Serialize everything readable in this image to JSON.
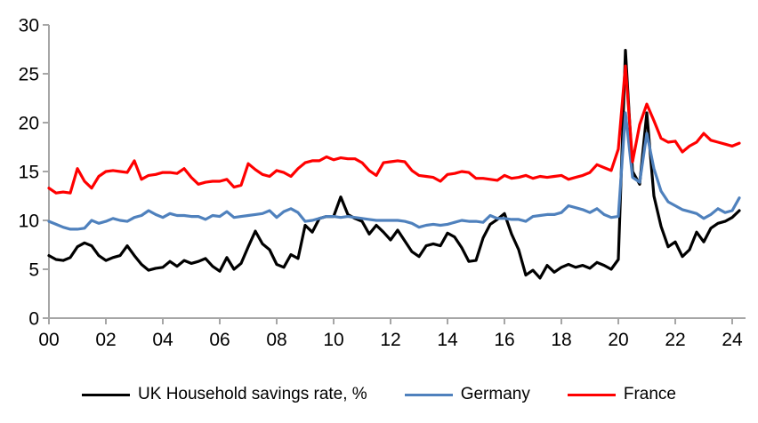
{
  "chart_data": {
    "type": "line",
    "title": "",
    "xlabel": "",
    "ylabel": "",
    "ylim": [
      0,
      30
    ],
    "y_tick_step": 5,
    "y_ticks": [
      0,
      5,
      10,
      15,
      20,
      25,
      30
    ],
    "x_ticks": [
      "00",
      "02",
      "04",
      "06",
      "08",
      "10",
      "12",
      "14",
      "16",
      "18",
      "20",
      "22",
      "24"
    ],
    "x_start_year": 2000,
    "x_step_years": 0.25,
    "frequency": "quarterly",
    "grid": "off",
    "legend_position": "bottom-center",
    "axis_color": "#a6a6a6",
    "background_color": "#ffffff",
    "series": [
      {
        "id": "uk",
        "name": "UK Household savings rate, %",
        "color": "#000000",
        "values": [
          6.4,
          6.0,
          5.9,
          6.2,
          7.3,
          7.7,
          7.4,
          6.4,
          5.9,
          6.2,
          6.4,
          7.4,
          6.4,
          5.5,
          4.9,
          5.1,
          5.2,
          5.8,
          5.3,
          5.9,
          5.6,
          5.8,
          6.1,
          5.3,
          4.8,
          6.2,
          5.0,
          5.6,
          7.3,
          8.9,
          7.6,
          7.0,
          5.5,
          5.2,
          6.5,
          6.1,
          9.5,
          8.8,
          10.2,
          10.4,
          10.4,
          12.4,
          10.6,
          10.2,
          9.9,
          8.6,
          9.5,
          8.8,
          8.0,
          9.0,
          7.9,
          6.8,
          6.3,
          7.4,
          7.6,
          7.4,
          8.7,
          8.3,
          7.2,
          5.8,
          5.9,
          8.2,
          9.6,
          10.1,
          10.7,
          8.6,
          7.0,
          4.4,
          4.9,
          4.1,
          5.4,
          4.7,
          5.2,
          5.5,
          5.2,
          5.4,
          5.1,
          5.7,
          5.4,
          5.0,
          6.0,
          27.4,
          15.0,
          13.7,
          21.0,
          12.5,
          9.4,
          7.3,
          7.8,
          6.3,
          7.0,
          8.8,
          7.8,
          9.2,
          9.7,
          9.9,
          10.3,
          11.0
        ]
      },
      {
        "id": "germany",
        "name": "Germany",
        "color": "#4f81bd",
        "values": [
          9.9,
          9.6,
          9.3,
          9.1,
          9.1,
          9.2,
          10.0,
          9.7,
          9.9,
          10.2,
          10.0,
          9.9,
          10.3,
          10.5,
          11.0,
          10.6,
          10.3,
          10.7,
          10.5,
          10.5,
          10.4,
          10.4,
          10.1,
          10.5,
          10.4,
          10.9,
          10.3,
          10.4,
          10.5,
          10.6,
          10.7,
          11.0,
          10.3,
          10.9,
          11.2,
          10.8,
          9.9,
          10.0,
          10.2,
          10.4,
          10.4,
          10.3,
          10.4,
          10.3,
          10.2,
          10.1,
          10.0,
          10.0,
          10.0,
          10.0,
          9.9,
          9.7,
          9.3,
          9.5,
          9.6,
          9.5,
          9.6,
          9.8,
          10.0,
          9.9,
          9.9,
          9.8,
          10.5,
          10.2,
          10.2,
          10.1,
          10.1,
          9.9,
          10.4,
          10.5,
          10.6,
          10.6,
          10.8,
          11.5,
          11.3,
          11.1,
          10.8,
          11.2,
          10.6,
          10.3,
          10.4,
          21.0,
          14.4,
          13.9,
          18.9,
          15.3,
          13.0,
          11.9,
          11.5,
          11.1,
          10.9,
          10.7,
          10.2,
          10.6,
          11.2,
          10.8,
          11.0,
          12.3
        ]
      },
      {
        "id": "france",
        "name": "France",
        "color": "#ff0000",
        "values": [
          13.3,
          12.8,
          12.9,
          12.8,
          15.3,
          14.0,
          13.3,
          14.5,
          15.0,
          15.1,
          15.0,
          14.9,
          16.1,
          14.2,
          14.6,
          14.7,
          14.9,
          14.9,
          14.8,
          15.3,
          14.4,
          13.7,
          13.9,
          14.0,
          14.0,
          14.2,
          13.4,
          13.6,
          15.8,
          15.2,
          14.7,
          14.5,
          15.1,
          14.9,
          14.5,
          15.3,
          15.9,
          16.1,
          16.1,
          16.5,
          16.2,
          16.4,
          16.3,
          16.3,
          15.9,
          15.1,
          14.6,
          15.9,
          16.0,
          16.1,
          16.0,
          15.1,
          14.6,
          14.5,
          14.4,
          14.0,
          14.7,
          14.8,
          15.0,
          14.9,
          14.3,
          14.3,
          14.2,
          14.1,
          14.6,
          14.3,
          14.4,
          14.6,
          14.3,
          14.5,
          14.4,
          14.5,
          14.6,
          14.2,
          14.4,
          14.6,
          14.9,
          15.7,
          15.4,
          15.1,
          17.3,
          25.8,
          16.0,
          19.8,
          21.9,
          20.2,
          18.4,
          18.0,
          18.1,
          17.0,
          17.6,
          18.0,
          18.9,
          18.2,
          18.0,
          17.8,
          17.6,
          17.9
        ]
      }
    ]
  },
  "legend": {
    "items": [
      {
        "label": "UK Household savings rate, %"
      },
      {
        "label": "Germany"
      },
      {
        "label": "France"
      }
    ]
  }
}
